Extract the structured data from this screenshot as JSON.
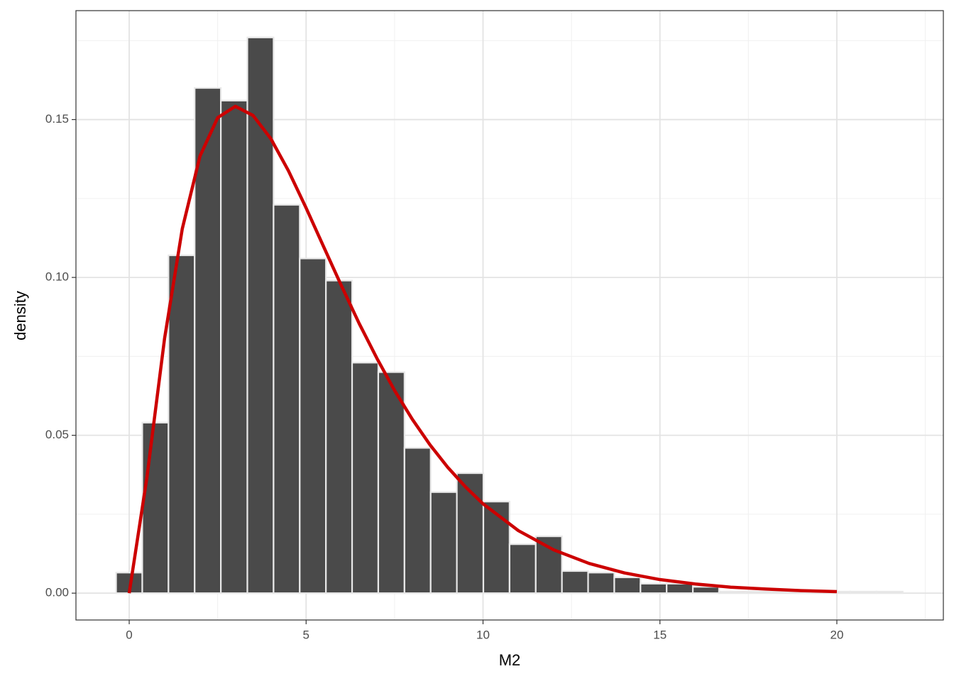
{
  "chart_data": {
    "type": "histogram",
    "x_label": "M2",
    "y_label": "density",
    "bins": [
      -0.37,
      0.37,
      1.11,
      1.85,
      2.59,
      3.34,
      4.08,
      4.82,
      5.56,
      6.3,
      7.04,
      7.78,
      8.52,
      9.26,
      10.01,
      10.75,
      11.49,
      12.23,
      12.97,
      13.71,
      14.45,
      15.19,
      15.93,
      16.67,
      17.42,
      18.16,
      18.9,
      19.64,
      20.38,
      21.12,
      21.86
    ],
    "values": [
      0.0065,
      0.054,
      0.107,
      0.16,
      0.156,
      0.176,
      0.123,
      0.106,
      0.099,
      0.073,
      0.07,
      0.046,
      0.032,
      0.038,
      0.029,
      0.0155,
      0.018,
      0.007,
      0.0065,
      0.005,
      0.003,
      0.003,
      0.002,
      0.0005,
      0.0005,
      0.0005,
      0.0005,
      0.0005,
      0.0005,
      0.0005
    ],
    "color": "#4a4a4a",
    "edge_color": "#e8e8e8",
    "density_curve": {
      "color": "#cc0000",
      "x": [
        0,
        0.5,
        1,
        1.5,
        2,
        2.5,
        3,
        3.5,
        4,
        4.5,
        5,
        5.5,
        6,
        6.5,
        7,
        7.5,
        8,
        8.5,
        9,
        9.5,
        10,
        11,
        12,
        13,
        14,
        15,
        16,
        17,
        18,
        19,
        20
      ],
      "values": [
        0,
        0.0366,
        0.0807,
        0.1154,
        0.1384,
        0.1506,
        0.1542,
        0.1513,
        0.144,
        0.1338,
        0.122,
        0.1096,
        0.0973,
        0.0854,
        0.0744,
        0.0642,
        0.0551,
        0.047,
        0.0399,
        0.0337,
        0.0283,
        0.0198,
        0.0137,
        0.0094,
        0.0064,
        0.0043,
        0.0029,
        0.0019,
        0.0013,
        0.0008,
        0.0005
      ]
    },
    "xlim": [
      -1.505,
      23.01
    ],
    "ylim": [
      -0.0085,
      0.1845
    ],
    "xticks": [
      0,
      5,
      10,
      15,
      20
    ],
    "yticks": [
      {
        "value": 0,
        "label": "0.00"
      },
      {
        "value": 0.05,
        "label": "0.05"
      },
      {
        "value": 0.1,
        "label": "0.10"
      },
      {
        "value": 0.15,
        "label": "0.15"
      }
    ],
    "x_minor_ticks": [
      2.5,
      7.5,
      12.5,
      17.5,
      22.5
    ],
    "y_minor_ticks": [
      0.025,
      0.075,
      0.125,
      0.175
    ],
    "grid": true
  }
}
